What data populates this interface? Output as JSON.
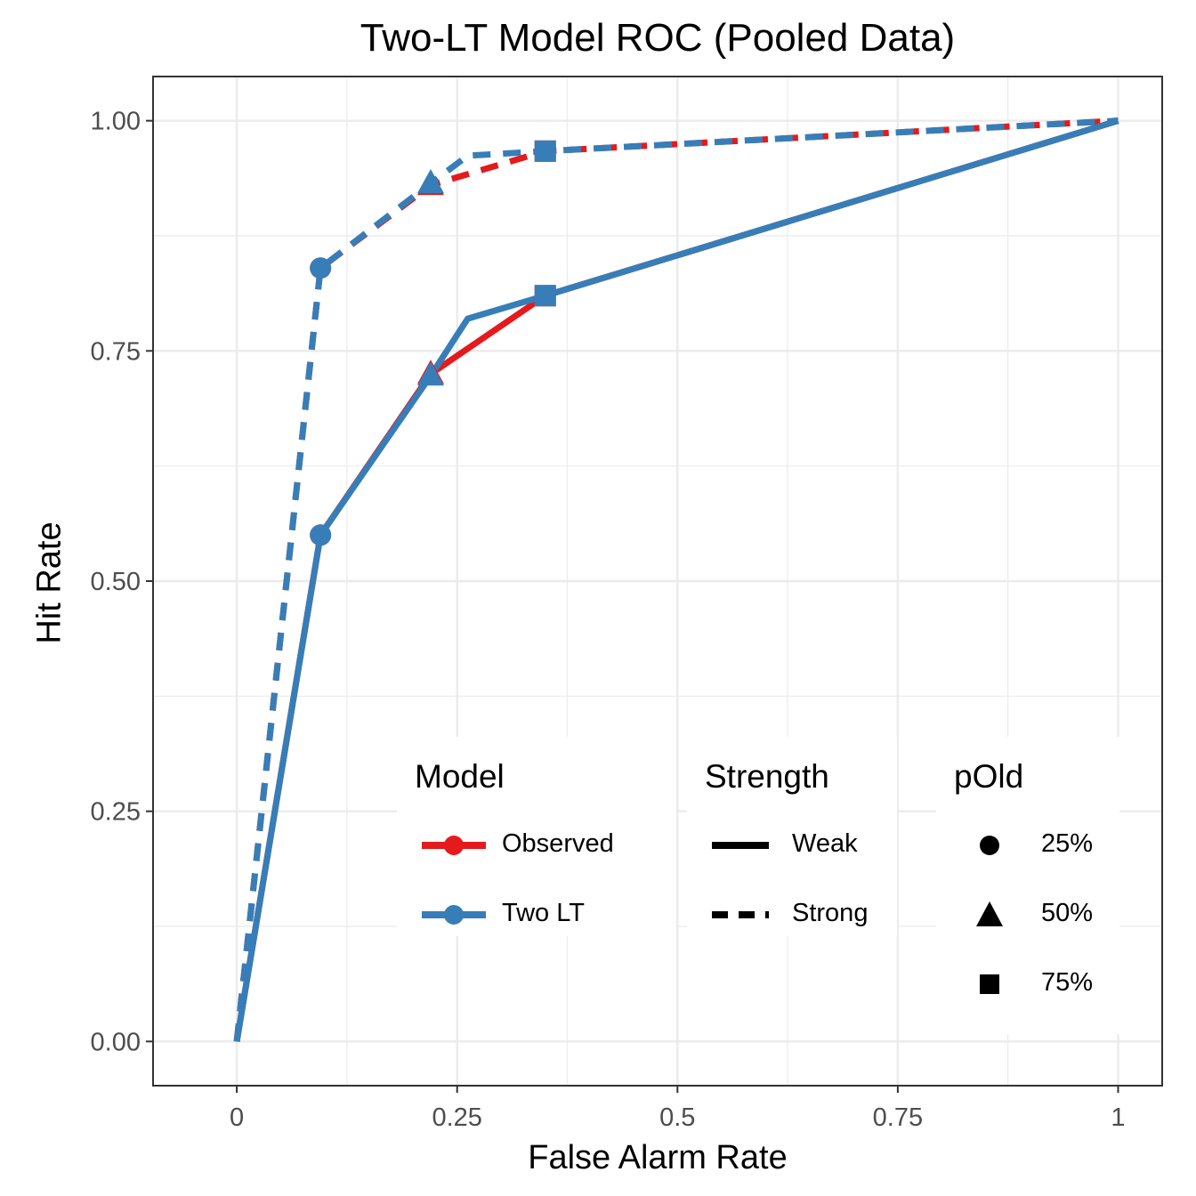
{
  "chart_data": {
    "type": "line",
    "title": "Two-LT Model ROC (Pooled Data)",
    "xlabel": "False Alarm Rate",
    "ylabel": "Hit Rate",
    "xlim": [
      -0.095,
      1.05
    ],
    "ylim": [
      -0.048,
      1.048
    ],
    "x_ticks": [
      0,
      0.25,
      0.5,
      0.75,
      1
    ],
    "x_tick_labels": [
      "0",
      "0.25",
      "0.5",
      "0.75",
      "1"
    ],
    "y_ticks": [
      0,
      0.25,
      0.5,
      0.75,
      1
    ],
    "y_tick_labels": [
      "0.00",
      "0.25",
      "0.50",
      "0.75",
      "1.00"
    ],
    "grid": true,
    "legend_position": "bottom-right inside",
    "series": [
      {
        "model": "Observed",
        "strength": "Weak",
        "color": "#E41A1C",
        "line": "solid",
        "points": [
          {
            "x": 0,
            "y": 0,
            "pOld": null
          },
          {
            "x": 0.095,
            "y": 0.55,
            "pOld": "25%"
          },
          {
            "x": 0.22,
            "y": 0.725,
            "pOld": "50%"
          },
          {
            "x": 0.35,
            "y": 0.81,
            "pOld": "75%"
          },
          {
            "x": 1,
            "y": 1,
            "pOld": null
          }
        ]
      },
      {
        "model": "Observed",
        "strength": "Strong",
        "color": "#E41A1C",
        "line": "dashed",
        "points": [
          {
            "x": 0,
            "y": 0,
            "pOld": null
          },
          {
            "x": 0.095,
            "y": 0.84,
            "pOld": "25%"
          },
          {
            "x": 0.22,
            "y": 0.93,
            "pOld": "50%"
          },
          {
            "x": 0.35,
            "y": 0.967,
            "pOld": "75%"
          },
          {
            "x": 1,
            "y": 1,
            "pOld": null
          }
        ]
      },
      {
        "model": "Two LT",
        "strength": "Weak",
        "color": "#377EB8",
        "line": "solid",
        "points": [
          {
            "x": 0,
            "y": 0,
            "pOld": null
          },
          {
            "x": 0.095,
            "y": 0.55,
            "pOld": "25%"
          },
          {
            "x": 0.22,
            "y": 0.723,
            "pOld": "50%"
          },
          {
            "x": 0.262,
            "y": 0.785,
            "pOld": null
          },
          {
            "x": 0.35,
            "y": 0.81,
            "pOld": "75%"
          },
          {
            "x": 1,
            "y": 1,
            "pOld": null
          }
        ]
      },
      {
        "model": "Two LT",
        "strength": "Strong",
        "color": "#377EB8",
        "line": "dashed",
        "points": [
          {
            "x": 0,
            "y": 0,
            "pOld": null
          },
          {
            "x": 0.095,
            "y": 0.84,
            "pOld": "25%"
          },
          {
            "x": 0.22,
            "y": 0.932,
            "pOld": "50%"
          },
          {
            "x": 0.262,
            "y": 0.962,
            "pOld": null
          },
          {
            "x": 0.35,
            "y": 0.967,
            "pOld": "75%"
          },
          {
            "x": 1,
            "y": 1,
            "pOld": null
          }
        ]
      }
    ],
    "legend": {
      "model": {
        "title": "Model",
        "items": [
          {
            "label": "Observed",
            "color": "#E41A1C"
          },
          {
            "label": "Two LT",
            "color": "#377EB8"
          }
        ]
      },
      "strength": {
        "title": "Strength",
        "items": [
          {
            "label": "Weak",
            "line": "solid"
          },
          {
            "label": "Strong",
            "line": "dashed"
          }
        ]
      },
      "pold": {
        "title": "pOld",
        "items": [
          {
            "label": "25%",
            "shape": "circle"
          },
          {
            "label": "50%",
            "shape": "triangle"
          },
          {
            "label": "75%",
            "shape": "square"
          }
        ]
      }
    }
  }
}
